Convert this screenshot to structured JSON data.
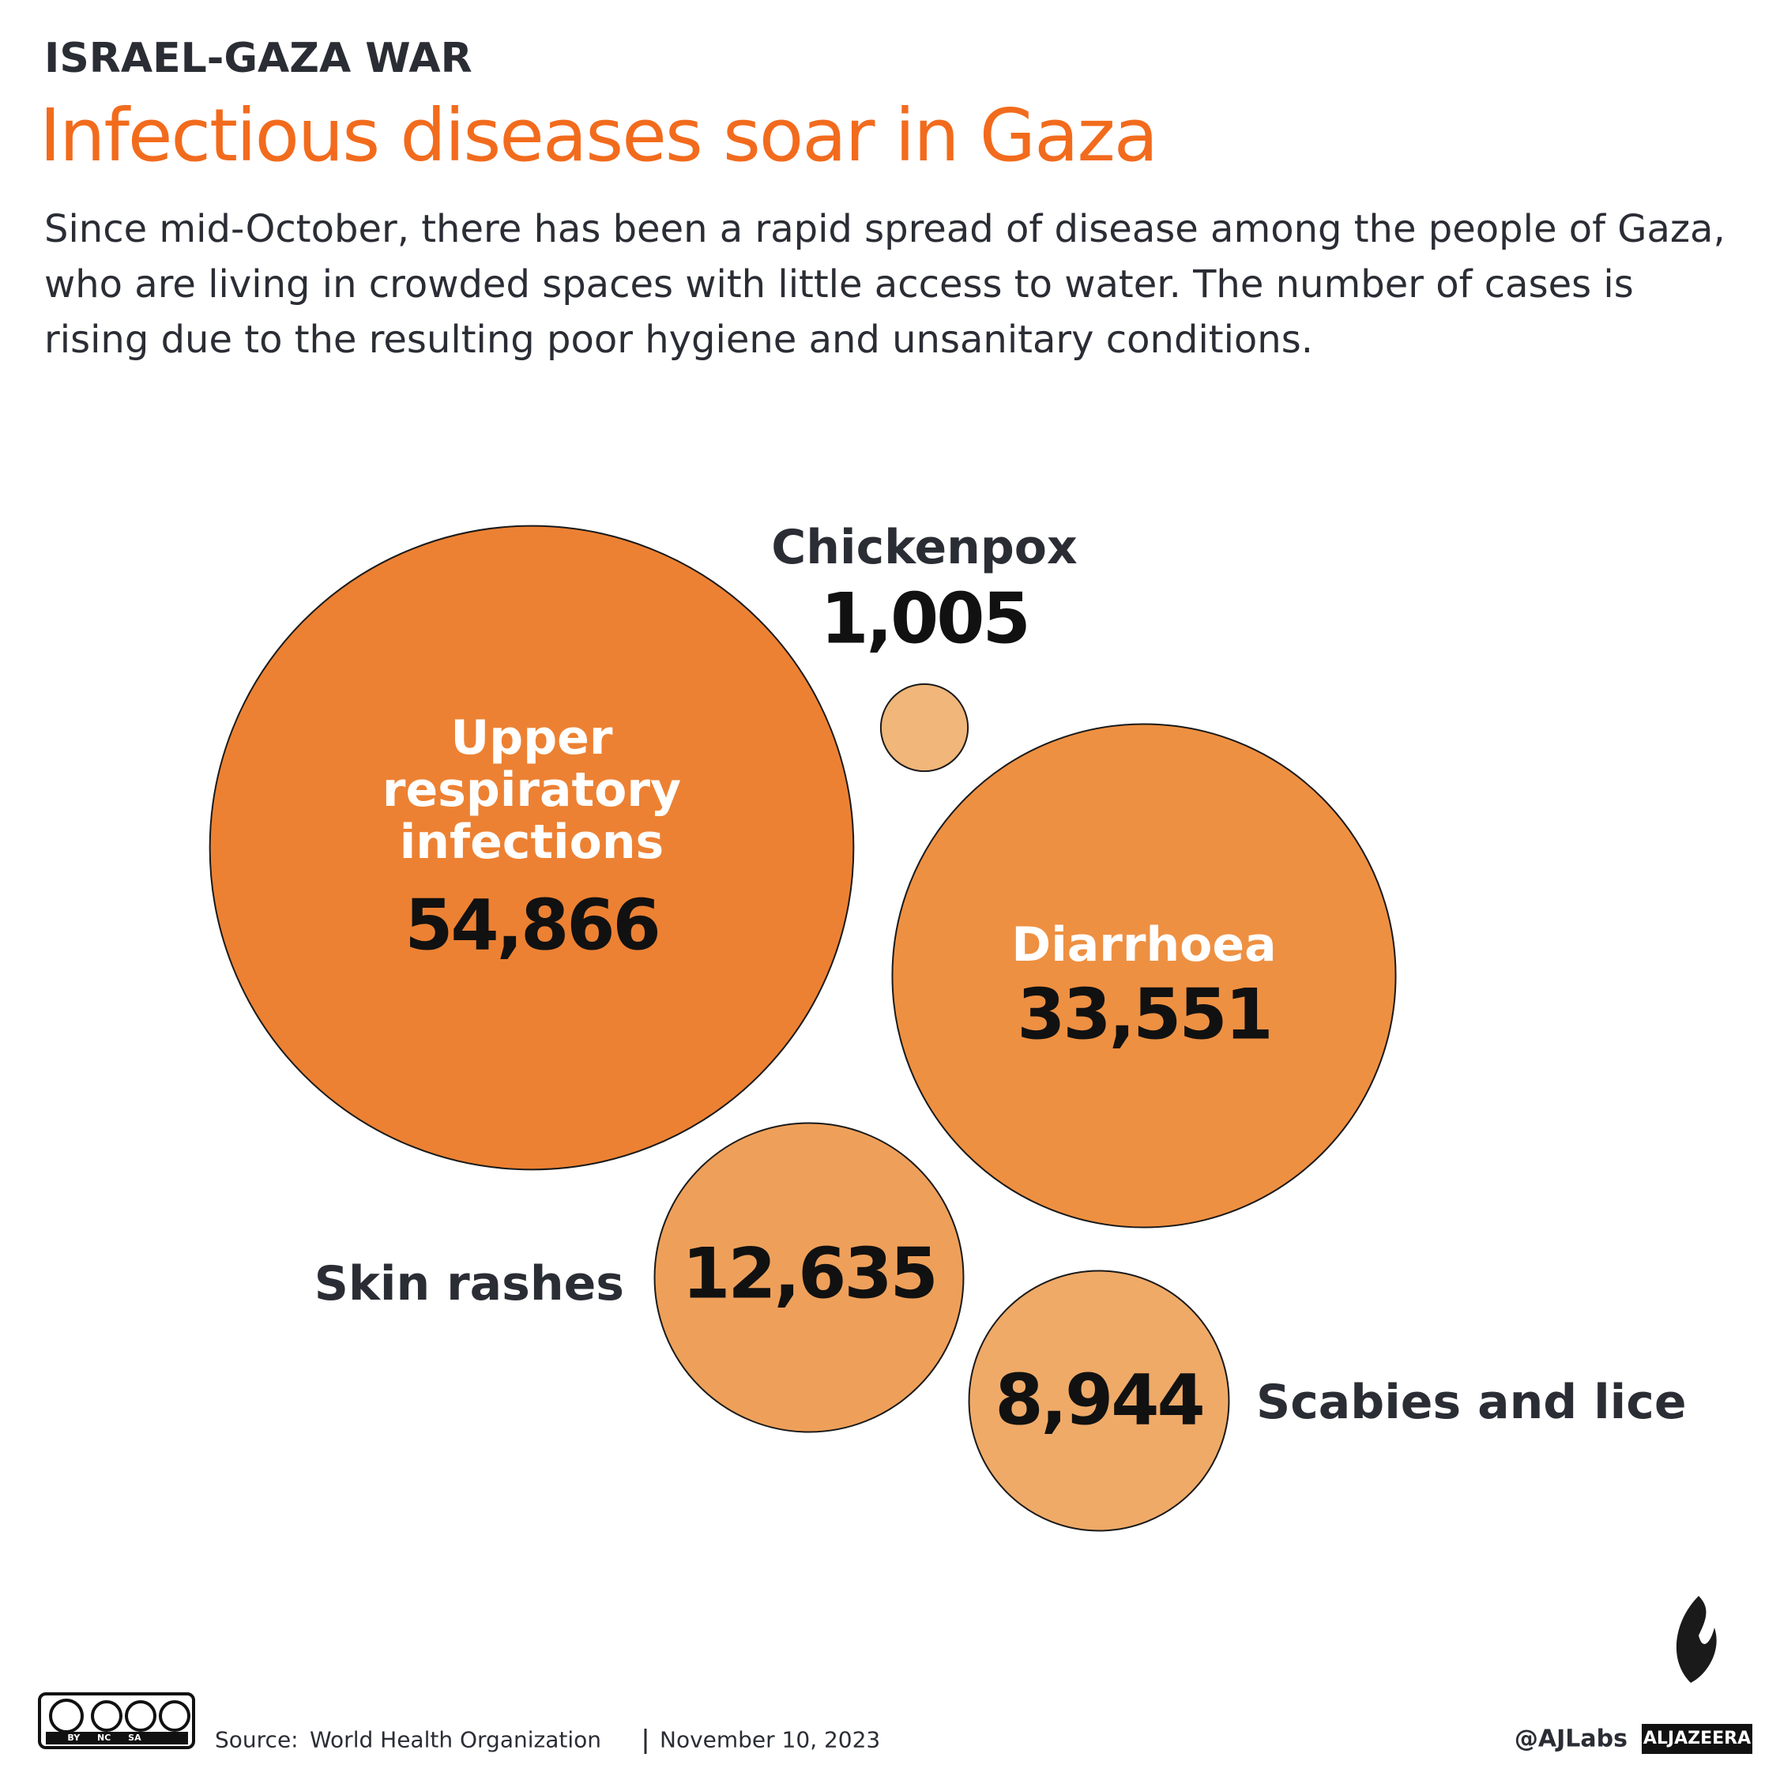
{
  "kicker": "ISRAEL-GAZA WAR",
  "chart_data": {
    "type": "bubble",
    "title": "Infectious diseases soar in Gaza",
    "subtitle": "Since mid-October, there has been a rapid spread of disease among the people of Gaza, who are living in crowded spaces with little access to water. The number of cases is rising due to the resulting poor hygiene and unsanitary conditions.",
    "categories": [
      "Upper respiratory infections",
      "Chickenpox",
      "Diarrhoea",
      "Skin rashes",
      "Scabies and lice"
    ],
    "values": [
      54866,
      1005,
      33551,
      12635,
      8944
    ],
    "value_labels": [
      "54,866",
      "1,005",
      "33,551",
      "12,635",
      "8,944"
    ],
    "colors": [
      "#ec8133",
      "#f0b67a",
      "#ee9042",
      "#eea05a",
      "#efaa68"
    ]
  },
  "footer": {
    "source_label": "Source:",
    "source": "World Health Organization",
    "date": "November 10, 2023",
    "credit": "@AJLabs",
    "brand": "ALJAZEERA",
    "license": [
      "BY",
      "NC",
      "SA"
    ]
  }
}
